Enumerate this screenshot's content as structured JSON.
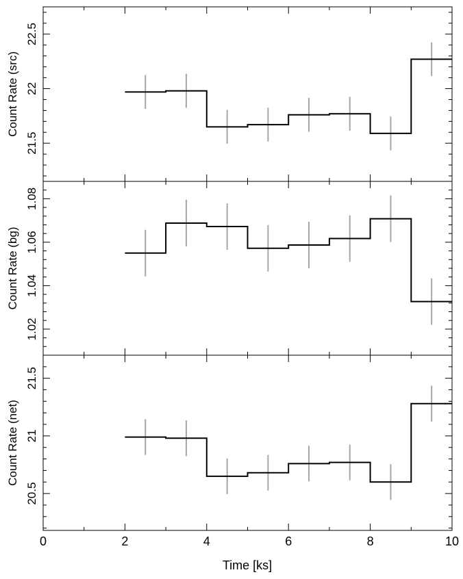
{
  "chart_data": [
    {
      "type": "step",
      "ylabel": "Count Rate (src)",
      "xlim": [
        0,
        10
      ],
      "ylim": [
        21.15,
        22.75
      ],
      "yticks": [
        21.5,
        22,
        22.5
      ],
      "ytick_labels": [
        "21.5",
        "22",
        "22.5"
      ],
      "x": [
        2.5,
        3.5,
        4.5,
        5.5,
        6.5,
        7.5,
        8.5,
        9.5
      ],
      "x_halfwidth": 0.5,
      "y": [
        21.97,
        21.98,
        21.65,
        21.67,
        21.76,
        21.77,
        21.59,
        22.27
      ],
      "yerr": [
        0.155,
        0.155,
        0.155,
        0.155,
        0.155,
        0.155,
        0.155,
        0.155
      ]
    },
    {
      "type": "step",
      "ylabel": "Count Rate (bg)",
      "xlim": [
        0,
        10
      ],
      "ylim": [
        1.008,
        1.088
      ],
      "yticks": [
        1.02,
        1.04,
        1.06,
        1.08
      ],
      "ytick_labels": [
        "1.02",
        "1.04",
        "1.06",
        "1.08"
      ],
      "x": [
        2.5,
        3.5,
        4.5,
        5.5,
        6.5,
        7.5,
        8.5,
        9.5
      ],
      "x_halfwidth": 0.5,
      "y": [
        1.055,
        1.0688,
        1.0672,
        1.0572,
        1.0587,
        1.0617,
        1.0708,
        1.0327
      ],
      "yerr": [
        0.0107,
        0.0107,
        0.0107,
        0.0107,
        0.0107,
        0.0107,
        0.0107,
        0.0107
      ]
    },
    {
      "type": "step",
      "ylabel": "Count Rate (net)",
      "xlabel": "Time [ks]",
      "xlim": [
        0,
        10
      ],
      "xticks": [
        0,
        2,
        4,
        6,
        8,
        10
      ],
      "xtick_labels": [
        "0",
        "2",
        "4",
        "6",
        "8",
        "10"
      ],
      "ylim": [
        20.18,
        21.7
      ],
      "yticks": [
        20.5,
        21,
        21.5
      ],
      "ytick_labels": [
        "20.5",
        "21",
        "21.5"
      ],
      "x": [
        2.5,
        3.5,
        4.5,
        5.5,
        6.5,
        7.5,
        8.5,
        9.5
      ],
      "x_halfwidth": 0.5,
      "y": [
        20.99,
        20.98,
        20.65,
        20.68,
        20.76,
        20.77,
        20.6,
        21.28
      ],
      "yerr": [
        0.155,
        0.155,
        0.155,
        0.155,
        0.155,
        0.155,
        0.155,
        0.155
      ]
    }
  ],
  "colors": {
    "step": "#000000",
    "errorbar": "#a6a6a6",
    "frame": "#000000"
  }
}
